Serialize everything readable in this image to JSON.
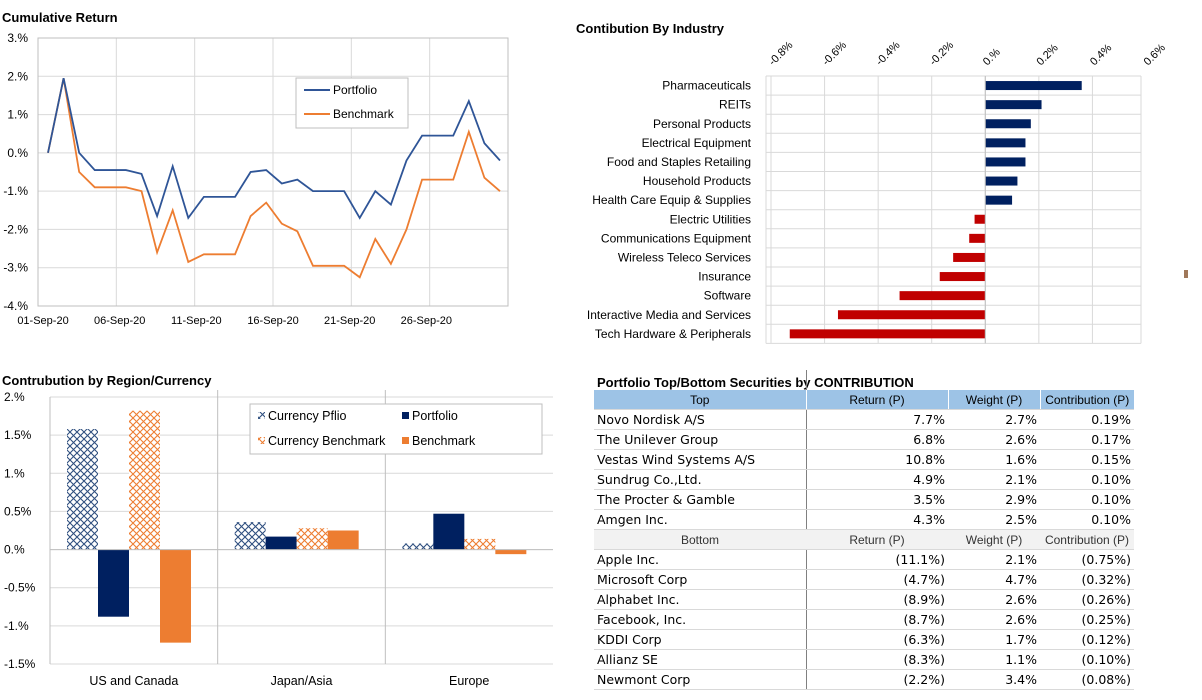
{
  "cumulative": {
    "title": "Cumulative Return",
    "chart_data": {
      "type": "line",
      "title": "Cumulative Return",
      "ylim": [
        -4,
        3
      ],
      "y_ticks": [
        "3.%",
        "2.%",
        "1.%",
        "0.%",
        "-1.%",
        "-2.%",
        "-3.%",
        "-4.%"
      ],
      "x_ticks": [
        "01-Sep-20",
        "06-Sep-20",
        "11-Sep-20",
        "16-Sep-20",
        "21-Sep-20",
        "26-Sep-20"
      ],
      "series": [
        {
          "name": "Portfolio",
          "color": "#2f5597",
          "values": [
            0.0,
            1.95,
            0.0,
            -0.45,
            -0.45,
            -0.45,
            -0.55,
            -1.65,
            -0.35,
            -1.7,
            -1.15,
            -1.15,
            -1.15,
            -0.5,
            -0.45,
            -0.8,
            -0.7,
            -1.0,
            -1.0,
            -1.0,
            -1.7,
            -1.0,
            -1.35,
            -0.2,
            0.45,
            0.45,
            0.45,
            1.35,
            0.25,
            -0.2
          ]
        },
        {
          "name": "Benchmark",
          "color": "#ed7d31",
          "values": [
            0.0,
            1.95,
            -0.5,
            -0.9,
            -0.9,
            -0.9,
            -1.0,
            -2.6,
            -1.5,
            -2.85,
            -2.65,
            -2.65,
            -2.65,
            -1.65,
            -1.3,
            -1.85,
            -2.05,
            -2.95,
            -2.95,
            -2.95,
            -3.25,
            -2.25,
            -2.9,
            -2.0,
            -0.7,
            -0.7,
            -0.7,
            0.55,
            -0.65,
            -1.0
          ]
        }
      ]
    }
  },
  "industry": {
    "title": "Contibution By Industry",
    "chart_data": {
      "type": "bar",
      "title": "Contibution By Industry",
      "xlim": [
        -0.8,
        0.6
      ],
      "x_ticks": [
        "-0.8%",
        "-0.6%",
        "-0.4%",
        "-0.2%",
        "0.%",
        "0.2%",
        "0.4%",
        "0.6%"
      ],
      "categories": [
        "Pharmaceuticals",
        "REITs",
        "Personal Products",
        "Electrical Equipment",
        "Food and Staples Retailing",
        "Household Products",
        "Health Care Equip & Supplies",
        "Electric Utilities",
        "Communications Equipment",
        "Wireless Teleco Services",
        "Insurance",
        "Software",
        "Interactive Media and Services",
        "Tech Hardware & Peripherals"
      ],
      "values": [
        0.36,
        0.21,
        0.17,
        0.15,
        0.15,
        0.12,
        0.1,
        -0.04,
        -0.06,
        -0.12,
        -0.17,
        -0.32,
        -0.55,
        -0.73
      ],
      "positive_color": "#002060",
      "negative_color": "#c00000"
    }
  },
  "region": {
    "title": "Contrubution by Region/Currency",
    "chart_data": {
      "type": "bar",
      "title": "Contrubution by Region/Currency",
      "ylim": [
        -1.5,
        2.0
      ],
      "y_ticks": [
        "2.%",
        "1.5%",
        "1.%",
        "0.5%",
        "0.%",
        "-0.5%",
        "-1.%",
        "-1.5%"
      ],
      "categories": [
        "US and Canada",
        "Japan/Asia",
        "Europe"
      ],
      "series": [
        {
          "name": "Currency Pflio",
          "color": "#2f4f7f",
          "pattern": "crosshatch",
          "values": [
            1.58,
            0.36,
            0.08
          ]
        },
        {
          "name": "Portfolio",
          "color": "#002060",
          "pattern": "solid",
          "values": [
            -0.88,
            0.17,
            0.47
          ]
        },
        {
          "name": "Currency Benchmark",
          "color": "#ed7d31",
          "pattern": "crosshatch",
          "values": [
            1.82,
            0.28,
            0.14
          ]
        },
        {
          "name": "Benchmark",
          "color": "#ed7d31",
          "pattern": "solid",
          "values": [
            -1.22,
            0.25,
            -0.06
          ]
        }
      ]
    }
  },
  "securities": {
    "title": "Portfolio Top/Bottom Securities by CONTRIBUTION",
    "header": [
      "Top",
      "Return (P)",
      "Weight (P)",
      "Contribution (P)"
    ],
    "top": [
      [
        "Novo Nordisk A/S",
        "7.7%",
        "2.7%",
        "0.19%"
      ],
      [
        "The Unilever Group",
        "6.8%",
        "2.6%",
        "0.17%"
      ],
      [
        "Vestas Wind Systems A/S",
        "10.8%",
        "1.6%",
        "0.15%"
      ],
      [
        "Sundrug Co.,Ltd.",
        "4.9%",
        "2.1%",
        "0.10%"
      ],
      [
        "The Procter & Gamble",
        "3.5%",
        "2.9%",
        "0.10%"
      ],
      [
        "Amgen Inc.",
        "4.3%",
        "2.5%",
        "0.10%"
      ]
    ],
    "subheader": [
      "Bottom",
      "Return (P)",
      "Weight (P)",
      "Contribution (P)"
    ],
    "bottom": [
      [
        "Apple Inc.",
        "(11.1%)",
        "2.1%",
        "(0.75%)"
      ],
      [
        "Microsoft Corp",
        "(4.7%)",
        "4.7%",
        "(0.32%)"
      ],
      [
        "Alphabet Inc.",
        "(8.9%)",
        "2.6%",
        "(0.26%)"
      ],
      [
        "Facebook, Inc.",
        "(8.7%)",
        "2.6%",
        "(0.25%)"
      ],
      [
        "KDDI Corp",
        "(6.3%)",
        "1.7%",
        "(0.12%)"
      ],
      [
        "Allianz SE",
        "(8.3%)",
        "1.1%",
        "(0.10%)"
      ],
      [
        "Newmont Corp",
        "(2.2%)",
        "3.4%",
        "(0.08%)"
      ]
    ]
  }
}
